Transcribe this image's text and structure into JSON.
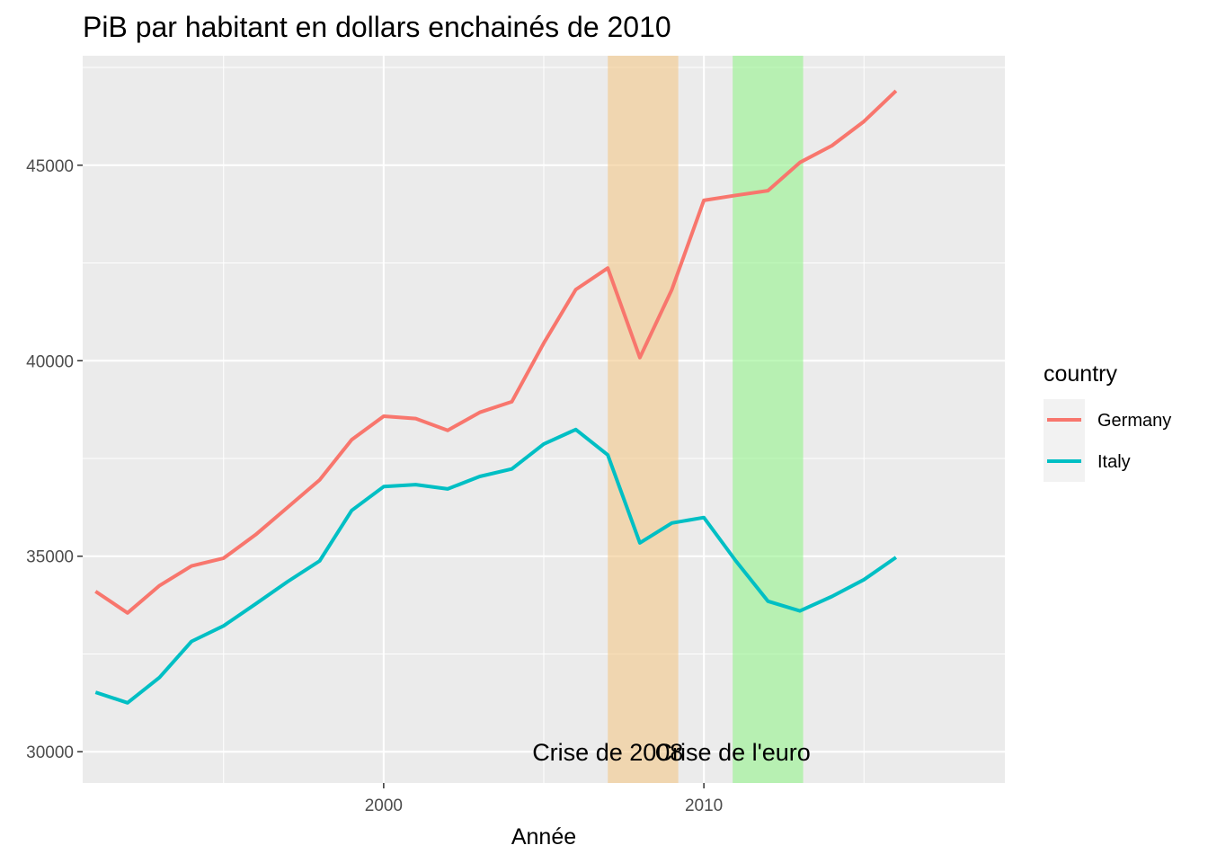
{
  "chart_data": {
    "type": "line",
    "title": "PiB par habitant en dollars enchainés de 2010",
    "xlabel": "Année",
    "ylabel": "",
    "xlim": [
      1990.6,
      2019.4
    ],
    "ylim": [
      29200,
      47800
    ],
    "x_ticks": [
      2000,
      2010
    ],
    "x_tick_labels": [
      "2000",
      "2010"
    ],
    "y_ticks": [
      30000,
      35000,
      40000,
      45000
    ],
    "y_tick_labels": [
      "30000",
      "35000",
      "40000",
      "45000"
    ],
    "grid": true,
    "legend": {
      "title": "country",
      "position": "right"
    },
    "x": [
      1991,
      1992,
      1993,
      1994,
      1995,
      1996,
      1997,
      1998,
      1999,
      2000,
      2001,
      2002,
      2003,
      2004,
      2005,
      2006,
      2007,
      2008,
      2009,
      2010,
      2011,
      2012,
      2013,
      2014,
      2015,
      2016,
      2017
    ],
    "series": [
      {
        "name": "Germany",
        "color": "#f8766d",
        "values": [
          34100,
          33550,
          34250,
          34750,
          34950,
          35550,
          36250,
          36950,
          37980,
          38580,
          38520,
          38220,
          38680,
          38950,
          40450,
          41820,
          42370,
          40080,
          41820,
          44100,
          44230,
          44350,
          45070,
          45500,
          46120,
          46900,
          null
        ]
      },
      {
        "name": "Italy",
        "color": "#00bfc4",
        "values": [
          31520,
          31250,
          31900,
          32820,
          33220,
          33780,
          34350,
          34880,
          36170,
          36780,
          36830,
          36720,
          37040,
          37230,
          37870,
          38240,
          37590,
          35340,
          35850,
          35990,
          34880,
          33850,
          33600,
          33970,
          34400,
          34970,
          null
        ]
      }
    ],
    "highlight_bands": [
      {
        "start": 2007,
        "end": 2009.2,
        "label": "Crise de 2008",
        "color": "#f4c888"
      },
      {
        "start": 2010.9,
        "end": 2013.1,
        "label": "Crise de l'euro",
        "color": "#94f48c"
      }
    ]
  }
}
